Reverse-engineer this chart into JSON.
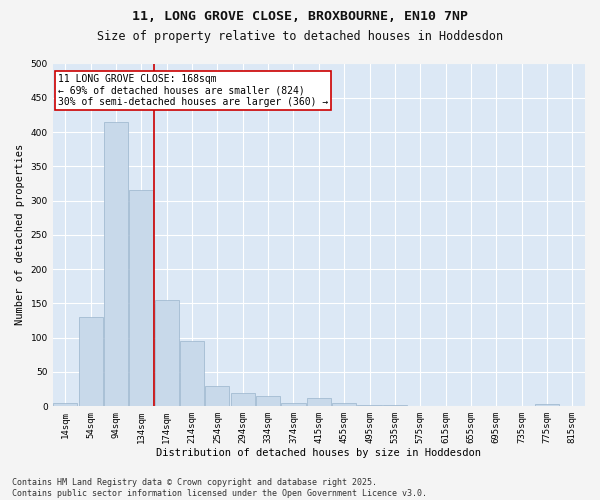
{
  "title_line1": "11, LONG GROVE CLOSE, BROXBOURNE, EN10 7NP",
  "title_line2": "Size of property relative to detached houses in Hoddesdon",
  "xlabel": "Distribution of detached houses by size in Hoddesdon",
  "ylabel": "Number of detached properties",
  "bar_color": "#c8d9ea",
  "bar_edge_color": "#9ab4cc",
  "bg_color": "#dce8f5",
  "grid_color": "#ffffff",
  "fig_bg_color": "#f4f4f4",
  "annotation_text": "11 LONG GROVE CLOSE: 168sqm\n← 69% of detached houses are smaller (824)\n30% of semi-detached houses are larger (360) →",
  "vline_color": "#cc0000",
  "vline_index": 3.5,
  "categories": [
    "14sqm",
    "54sqm",
    "94sqm",
    "134sqm",
    "174sqm",
    "214sqm",
    "254sqm",
    "294sqm",
    "334sqm",
    "374sqm",
    "415sqm",
    "455sqm",
    "495sqm",
    "535sqm",
    "575sqm",
    "615sqm",
    "655sqm",
    "695sqm",
    "735sqm",
    "775sqm",
    "815sqm"
  ],
  "values": [
    5,
    130,
    415,
    315,
    155,
    95,
    30,
    20,
    15,
    5,
    12,
    5,
    2,
    2,
    0,
    0,
    0,
    0,
    0,
    3,
    0
  ],
  "ylim": [
    0,
    500
  ],
  "yticks": [
    0,
    50,
    100,
    150,
    200,
    250,
    300,
    350,
    400,
    450,
    500
  ],
  "footnote": "Contains HM Land Registry data © Crown copyright and database right 2025.\nContains public sector information licensed under the Open Government Licence v3.0.",
  "title_fontsize": 9.5,
  "subtitle_fontsize": 8.5,
  "axis_label_fontsize": 7.5,
  "tick_fontsize": 6.5,
  "annot_fontsize": 7,
  "footnote_fontsize": 6
}
